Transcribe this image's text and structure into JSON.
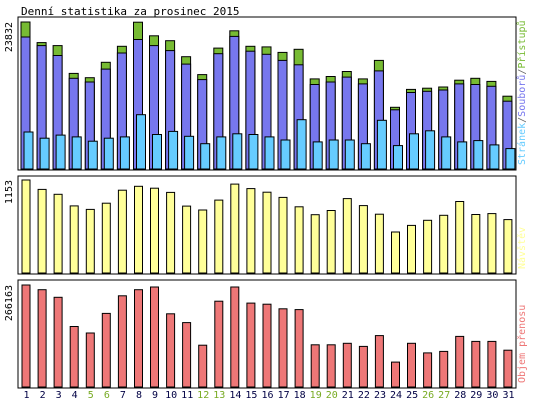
{
  "title": "Denní statistika za prosinec 2015",
  "colors": {
    "pristupu": "#77bb33",
    "souboru": "#7777ee",
    "stranek": "#66ccff",
    "navstev": "#ffff99",
    "prenos": "#ee7777",
    "weekend_label": "#77aa22",
    "day_label": "#000044"
  },
  "chart_data": [
    {
      "type": "bar",
      "title": "",
      "ymax_label": "23832",
      "legend_vertical": {
        "position": "right",
        "parts": [
          "Stránek",
          "/",
          "Souborů",
          "/",
          "Přístupů"
        ]
      },
      "categories": [
        "1",
        "2",
        "3",
        "4",
        "5",
        "6",
        "7",
        "8",
        "9",
        "10",
        "11",
        "12",
        "13",
        "14",
        "15",
        "16",
        "17",
        "18",
        "19",
        "20",
        "21",
        "22",
        "23",
        "24",
        "25",
        "26",
        "27",
        "28",
        "29",
        "30",
        "31"
      ],
      "weekend_days": [
        "5",
        "6",
        "12",
        "13",
        "19",
        "20",
        "26",
        "27"
      ],
      "ylim": [
        0,
        23832
      ],
      "series": [
        {
          "name": "Přístupů",
          "color_key": "pristupu",
          "values": [
            23832,
            20500,
            20000,
            15500,
            14800,
            17300,
            19900,
            23800,
            21600,
            20800,
            18200,
            15300,
            19600,
            22400,
            19900,
            19800,
            18900,
            19400,
            14600,
            15000,
            15800,
            14600,
            17600,
            10000,
            12900,
            13100,
            13300,
            14400,
            14700,
            14200,
            11800
          ]
        },
        {
          "name": "Souborů",
          "color_key": "souboru",
          "values": [
            21400,
            20000,
            18400,
            14700,
            14100,
            16200,
            18800,
            21000,
            20000,
            19200,
            17000,
            14500,
            18700,
            21500,
            19100,
            18600,
            17600,
            16900,
            13700,
            14100,
            14900,
            13800,
            15900,
            9600,
            12400,
            12600,
            12800,
            13800,
            13700,
            13400,
            11000
          ]
        },
        {
          "name": "Stránek",
          "color_key": "stranek",
          "values": [
            6000,
            5000,
            5500,
            5200,
            4500,
            5000,
            5200,
            8800,
            5600,
            6100,
            5300,
            4100,
            5200,
            5700,
            5600,
            5200,
            4700,
            8000,
            4400,
            4700,
            4700,
            4100,
            7900,
            3800,
            5700,
            6200,
            5200,
            4400,
            4600,
            3900,
            3300
          ]
        }
      ]
    },
    {
      "type": "bar",
      "title": "",
      "ymax_label": "1153",
      "legend_vertical": {
        "position": "right",
        "parts": [
          "Návštěv"
        ]
      },
      "categories": [
        "1",
        "2",
        "3",
        "4",
        "5",
        "6",
        "7",
        "8",
        "9",
        "10",
        "11",
        "12",
        "13",
        "14",
        "15",
        "16",
        "17",
        "18",
        "19",
        "20",
        "21",
        "22",
        "23",
        "24",
        "25",
        "26",
        "27",
        "28",
        "29",
        "30",
        "31"
      ],
      "ylim": [
        0,
        1153
      ],
      "series": [
        {
          "name": "Návštěv",
          "color_key": "navstev",
          "values": [
            1153,
            1036,
            976,
            832,
            789,
            865,
            1027,
            1075,
            1051,
            999,
            830,
            781,
            904,
            1102,
            1046,
            1002,
            937,
            821,
            723,
            775,
            923,
            836,
            729,
            508,
            590,
            653,
            715,
            887,
            725,
            737,
            662
          ]
        }
      ]
    },
    {
      "type": "bar",
      "title": "",
      "ymax_label": "266163",
      "legend_vertical": {
        "position": "right",
        "parts": [
          "Objem přenosu"
        ]
      },
      "categories": [
        "1",
        "2",
        "3",
        "4",
        "5",
        "6",
        "7",
        "8",
        "9",
        "10",
        "11",
        "12",
        "13",
        "14",
        "15",
        "16",
        "17",
        "18",
        "19",
        "20",
        "21",
        "22",
        "23",
        "24",
        "25",
        "26",
        "27",
        "28",
        "29",
        "30",
        "31"
      ],
      "ylim": [
        0,
        266163
      ],
      "series": [
        {
          "name": "Objem přenosu",
          "color_key": "prenos",
          "values": [
            266163,
            254000,
            234000,
            158000,
            141000,
            192000,
            238000,
            254000,
            261000,
            191000,
            168000,
            109000,
            224000,
            261000,
            219000,
            216000,
            204000,
            202000,
            110000,
            110000,
            114000,
            106000,
            134000,
            65000,
            114000,
            89000,
            93000,
            132000,
            119000,
            119000,
            96000
          ]
        }
      ]
    }
  ]
}
